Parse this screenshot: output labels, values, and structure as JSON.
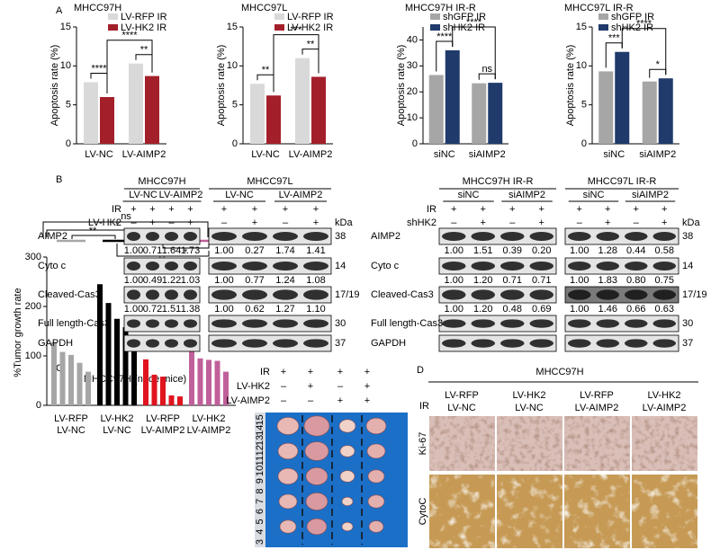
{
  "panel_labels": [
    "A",
    "B",
    "C",
    "D"
  ],
  "chart_data": [
    {
      "type": "bar",
      "title": "MHCC97H",
      "y_label": "Apoptosis rate (%)",
      "categories": [
        "LV-NC",
        "LV-AIMP2"
      ],
      "series": [
        {
          "name": "LV-RFP IR",
          "color": "#d9d9d9",
          "values": [
            7.9,
            10.3
          ]
        },
        {
          "name": "LV-HK2 IR",
          "color": "#a31f2a",
          "values": [
            6.0,
            8.7
          ]
        }
      ],
      "ylim": [
        0,
        15
      ],
      "yticks": [
        0,
        5,
        10,
        15
      ],
      "annotations": [
        "****",
        "**",
        "****"
      ]
    },
    {
      "type": "bar",
      "title": "MHCC97L",
      "y_label": "Apoptosis rate (%)",
      "categories": [
        "LV-NC",
        "LV-AIMP2"
      ],
      "series": [
        {
          "name": "LV-RFP IR",
          "color": "#d9d9d9",
          "values": [
            7.7,
            11.0
          ]
        },
        {
          "name": "LV-HK2 IR",
          "color": "#a31f2a",
          "values": [
            6.2,
            8.6
          ]
        }
      ],
      "ylim": [
        0,
        15
      ],
      "yticks": [
        0,
        5,
        10,
        15
      ],
      "annotations": [
        "**",
        "**",
        "***"
      ]
    },
    {
      "type": "bar",
      "title": "MHCC97H IR-R",
      "y_label": "Apoptosis rate (%)",
      "categories": [
        "siNC",
        "siAIMP2"
      ],
      "series": [
        {
          "name": "shGFP IR",
          "color": "#a6a6a6",
          "values": [
            26.5,
            23.3
          ]
        },
        {
          "name": "shHK2 IR",
          "color": "#1f3a6b",
          "values": [
            36.0,
            23.5
          ]
        }
      ],
      "ylim": [
        0,
        45
      ],
      "yticks": [
        0,
        10,
        20,
        30,
        40
      ],
      "annotations": [
        "****",
        "ns",
        "****"
      ]
    },
    {
      "type": "bar",
      "title": "MHCC97L IR-R",
      "y_label": "Apoptosis rate (%)",
      "categories": [
        "siNC",
        "siAIMP2"
      ],
      "series": [
        {
          "name": "shGFP IR",
          "color": "#a6a6a6",
          "values": [
            9.3,
            8.0
          ]
        },
        {
          "name": "shHK2 IR",
          "color": "#1f3a6b",
          "values": [
            11.8,
            8.4
          ]
        }
      ],
      "ylim": [
        0,
        15
      ],
      "yticks": [
        0,
        5,
        10,
        15
      ],
      "annotations": [
        "***",
        "*",
        "****"
      ]
    },
    {
      "type": "sample-bar",
      "title": "MHCC97H (nude mice)",
      "y_label": "%Tumor growth rate",
      "groups": [
        {
          "label": [
            "LV-RFP",
            "LV-NC"
          ],
          "color": "#a6a6a6",
          "values": [
            128,
            108,
            102,
            86,
            68
          ]
        },
        {
          "label": [
            "LV-HK2",
            "LV-NC"
          ],
          "color": "#000000",
          "values": [
            245,
            207,
            175,
            158,
            140
          ]
        },
        {
          "label": [
            "LV-RFP",
            "LV-AIMP2"
          ],
          "color": "#e0141e",
          "values": [
            93,
            62,
            58,
            20,
            18
          ]
        },
        {
          "label": [
            "LV-HK2",
            "LV-AIMP2"
          ],
          "color": "#c0609a",
          "values": [
            132,
            95,
            92,
            90,
            68
          ]
        }
      ],
      "ylim": [
        0,
        300
      ],
      "yticks": [
        0,
        100,
        200,
        300
      ],
      "annotations": [
        "ns",
        "*",
        "**",
        "*",
        "**"
      ]
    }
  ],
  "blots": [
    {
      "title": "MHCC97H",
      "groups": [
        "LV-NC",
        "LV-AIMP2"
      ],
      "condition_labels": [
        "IR",
        "LV-HK2"
      ],
      "signs": [
        [
          "+",
          "+",
          "+",
          "+"
        ],
        [
          "–",
          "+",
          "–",
          "+"
        ]
      ],
      "row_labels": [
        "AIMP2",
        "Cyto c",
        "Cleaved-Cas3",
        "Full length-Cas3",
        "GAPDH"
      ],
      "quant": [
        [
          "1.00",
          "0.71",
          "1.64",
          "1.73"
        ],
        [
          "1.00",
          "0.49",
          "1.22",
          "1.03"
        ],
        [
          "1.00",
          "0.72",
          "1.51",
          "1.38"
        ]
      ]
    },
    {
      "title": "MHCC97L",
      "groups": [
        "LV-NC",
        "LV-AIMP2"
      ],
      "signs": [
        [
          "+",
          "+",
          "+",
          "+"
        ],
        [
          "–",
          "+",
          "–",
          "+"
        ]
      ],
      "kda_unit": "kDa",
      "kda": [
        "38",
        "14",
        "17/19",
        "30",
        "37"
      ],
      "quant": [
        [
          "1.00",
          "0.27",
          "1.74",
          "1.41"
        ],
        [
          "1.00",
          "0.77",
          "1.24",
          "1.08"
        ],
        [
          "1.00",
          "0.62",
          "1.27",
          "1.10"
        ]
      ]
    },
    {
      "title": "MHCC97H IR-R",
      "groups": [
        "siNC",
        "siAIMP2"
      ],
      "condition_labels": [
        "IR",
        "shHK2"
      ],
      "signs": [
        [
          "+",
          "+",
          "+",
          "+"
        ],
        [
          "–",
          "+",
          "–",
          "+"
        ]
      ],
      "row_labels": [
        "AIMP2",
        "Cyto c",
        "Cleaved-Cas3",
        "Full length-Cas3",
        "GAPDH"
      ],
      "quant": [
        [
          "1.00",
          "1.51",
          "0.39",
          "0.20"
        ],
        [
          "1.00",
          "1.20",
          "0.71",
          "0.71"
        ],
        [
          "1.00",
          "1.20",
          "0.48",
          "0.69"
        ]
      ]
    },
    {
      "title": "MHCC97L IR-R",
      "groups": [
        "siNC",
        "siAIMP2"
      ],
      "signs": [
        [
          "+",
          "+",
          "+",
          "+"
        ],
        [
          "–",
          "+",
          "–",
          "+"
        ]
      ],
      "kda_unit": "kDa",
      "kda": [
        "38",
        "14",
        "17/19",
        "30",
        "37"
      ],
      "quant": [
        [
          "1.00",
          "1.28",
          "0.44",
          "0.58"
        ],
        [
          "1.00",
          "1.83",
          "0.80",
          "0.75"
        ],
        [
          "1.00",
          "1.46",
          "0.66",
          "0.63"
        ]
      ]
    }
  ],
  "xenograft": {
    "conditions": [
      {
        "label": "IR",
        "signs": [
          "+",
          "+",
          "+",
          "+"
        ]
      },
      {
        "label": "LV-HK2",
        "signs": [
          "–",
          "+",
          "–",
          "+"
        ]
      },
      {
        "label": "LV-AIMP2",
        "signs": [
          "–",
          "–",
          "+",
          "+"
        ]
      }
    ],
    "ruler": [
      "3",
      "4",
      "5",
      "6",
      "7",
      "8",
      "9",
      "10",
      "11",
      "12",
      "13",
      "14",
      "15"
    ]
  },
  "ihc": {
    "title": "MHCC97H",
    "treatment": "IR",
    "columns": [
      [
        "LV-RFP",
        "LV-NC"
      ],
      [
        "LV-HK2",
        "LV-NC"
      ],
      [
        "LV-RFP",
        "LV-AIMP2"
      ],
      [
        "LV-HK2",
        "LV-AIMP2"
      ]
    ],
    "rows": [
      "Ki-67",
      "CytoC"
    ]
  }
}
